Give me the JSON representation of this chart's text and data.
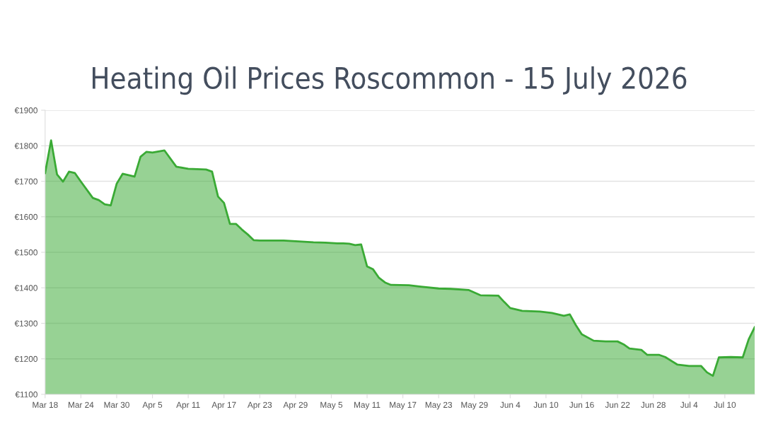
{
  "chart_data": {
    "type": "area",
    "title": "Heating Oil Prices Roscommon - 15 July 2026",
    "x": [
      "2026-03-18",
      "2026-03-19",
      "2026-03-20",
      "2026-03-21",
      "2026-03-22",
      "2026-03-23",
      "2026-03-24",
      "2026-03-26",
      "2026-03-27",
      "2026-03-28",
      "2026-03-29",
      "2026-03-30",
      "2026-03-31",
      "2026-04-02",
      "2026-04-03",
      "2026-04-04",
      "2026-04-05",
      "2026-04-07",
      "2026-04-09",
      "2026-04-11",
      "2026-04-14",
      "2026-04-15",
      "2026-04-16",
      "2026-04-17",
      "2026-04-18",
      "2026-04-19",
      "2026-04-20",
      "2026-04-21",
      "2026-04-22",
      "2026-04-23",
      "2026-04-27",
      "2026-04-29",
      "2026-04-30",
      "2026-05-02",
      "2026-05-04",
      "2026-05-06",
      "2026-05-07",
      "2026-05-08",
      "2026-05-09",
      "2026-05-10",
      "2026-05-11",
      "2026-05-12",
      "2026-05-13",
      "2026-05-14",
      "2026-05-15",
      "2026-05-18",
      "2026-05-20",
      "2026-05-23",
      "2026-05-25",
      "2026-05-28",
      "2026-05-30",
      "2026-06-02",
      "2026-06-03",
      "2026-06-04",
      "2026-06-06",
      "2026-06-09",
      "2026-06-11",
      "2026-06-13",
      "2026-06-14",
      "2026-06-15",
      "2026-06-16",
      "2026-06-18",
      "2026-06-20",
      "2026-06-22",
      "2026-06-23",
      "2026-06-24",
      "2026-06-26",
      "2026-06-27",
      "2026-06-29",
      "2026-06-30",
      "2026-07-02",
      "2026-07-04",
      "2026-07-06",
      "2026-07-07",
      "2026-07-08",
      "2026-07-09",
      "2026-07-11",
      "2026-07-13",
      "2026-07-14",
      "2026-07-15"
    ],
    "series": [
      {
        "color": "#3aaa35",
        "values": [
          1723,
          1815,
          1719,
          1699,
          1727,
          1723,
          1699,
          1653,
          1647,
          1635,
          1632,
          1693,
          1721,
          1713,
          1769,
          1783,
          1781,
          1787,
          1741,
          1735,
          1733,
          1727,
          1657,
          1639,
          1580,
          1580,
          1564,
          1550,
          1534,
          1533,
          1533,
          1531,
          1530,
          1528,
          1527,
          1525,
          1525,
          1524,
          1520,
          1522,
          1460,
          1452,
          1428,
          1415,
          1408,
          1407,
          1403,
          1398,
          1397,
          1394,
          1379,
          1378,
          1360,
          1343,
          1335,
          1333,
          1329,
          1321,
          1325,
          1295,
          1269,
          1251,
          1249,
          1249,
          1241,
          1229,
          1225,
          1211,
          1211,
          1205,
          1184,
          1180,
          1180,
          1162,
          1152,
          1204,
          1205,
          1204,
          1255,
          1289
        ]
      }
    ],
    "ylim": [
      1100,
      1900
    ],
    "yticks": [
      {
        "value": 1100,
        "label": "€1100"
      },
      {
        "value": 1200,
        "label": "€1200"
      },
      {
        "value": 1300,
        "label": "€1300"
      },
      {
        "value": 1400,
        "label": "€1400"
      },
      {
        "value": 1500,
        "label": "€1500"
      },
      {
        "value": 1600,
        "label": "€1600"
      },
      {
        "value": 1700,
        "label": "€1700"
      },
      {
        "value": 1800,
        "label": "€1800"
      },
      {
        "value": 1900,
        "label": "€1900"
      }
    ],
    "xlim": [
      "2026-03-18",
      "2026-07-15"
    ],
    "xticks": [
      {
        "value": "2026-03-18",
        "label": "Mar 18"
      },
      {
        "value": "2026-03-24",
        "label": "Mar 24"
      },
      {
        "value": "2026-03-30",
        "label": "Mar 30"
      },
      {
        "value": "2026-04-05",
        "label": "Apr 5"
      },
      {
        "value": "2026-04-11",
        "label": "Apr 11"
      },
      {
        "value": "2026-04-17",
        "label": "Apr 17"
      },
      {
        "value": "2026-04-23",
        "label": "Apr 23"
      },
      {
        "value": "2026-04-29",
        "label": "Apr 29"
      },
      {
        "value": "2026-05-05",
        "label": "May 5"
      },
      {
        "value": "2026-05-11",
        "label": "May 11"
      },
      {
        "value": "2026-05-17",
        "label": "May 17"
      },
      {
        "value": "2026-05-23",
        "label": "May 23"
      },
      {
        "value": "2026-05-29",
        "label": "May 29"
      },
      {
        "value": "2026-06-04",
        "label": "Jun 4"
      },
      {
        "value": "2026-06-10",
        "label": "Jun 10"
      },
      {
        "value": "2026-06-16",
        "label": "Jun 16"
      },
      {
        "value": "2026-06-22",
        "label": "Jun 22"
      },
      {
        "value": "2026-06-28",
        "label": "Jun 28"
      },
      {
        "value": "2026-07-04",
        "label": "Jul 4"
      },
      {
        "value": "2026-07-10",
        "label": "Jul 10"
      }
    ],
    "grid": "y",
    "legend": false,
    "marker": "none",
    "line_style": "solid"
  }
}
